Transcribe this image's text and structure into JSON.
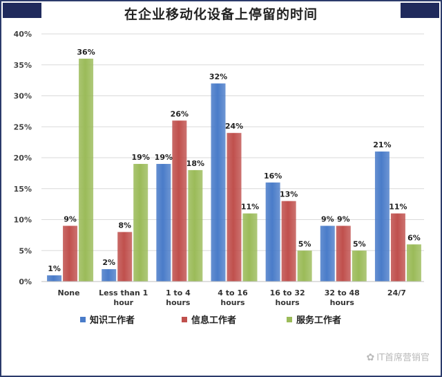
{
  "chart_data": {
    "type": "bar",
    "title": "在企业移动化设备上停留的时间",
    "categories": [
      [
        "None"
      ],
      [
        "Less than 1",
        "hour"
      ],
      [
        "1 to 4",
        "hours"
      ],
      [
        "4 to 16",
        "hours"
      ],
      [
        "16 to 32",
        "hours"
      ],
      [
        "32 to 48",
        "hours"
      ],
      [
        "24/7"
      ]
    ],
    "series": [
      {
        "name": "知识工作者",
        "color": "#4a7cc9",
        "values": [
          1,
          2,
          19,
          32,
          16,
          9,
          21
        ],
        "labels": [
          "1%",
          "2%",
          "19%",
          "32%",
          "16%",
          "9%",
          "21%"
        ]
      },
      {
        "name": "信息工作者",
        "color": "#c0504d",
        "values": [
          9,
          8,
          26,
          24,
          13,
          9,
          11
        ],
        "labels": [
          "9%",
          "8%",
          "26%",
          "24%",
          "13%",
          "9%",
          "11%"
        ]
      },
      {
        "name": "服务工作者",
        "color": "#9bbb59",
        "values": [
          36,
          19,
          18,
          11,
          5,
          5,
          6
        ],
        "labels": [
          "36%",
          "19%",
          "18%",
          "11%",
          "5%",
          "5%",
          "6%"
        ]
      }
    ],
    "ylim": [
      0,
      40
    ],
    "yticks": [
      "0%",
      "5%",
      "10%",
      "15%",
      "20%",
      "25%",
      "30%",
      "35%",
      "40%"
    ],
    "legend_position": "bottom",
    "grid": true
  },
  "watermark": {
    "text": "IT首席营销官"
  }
}
